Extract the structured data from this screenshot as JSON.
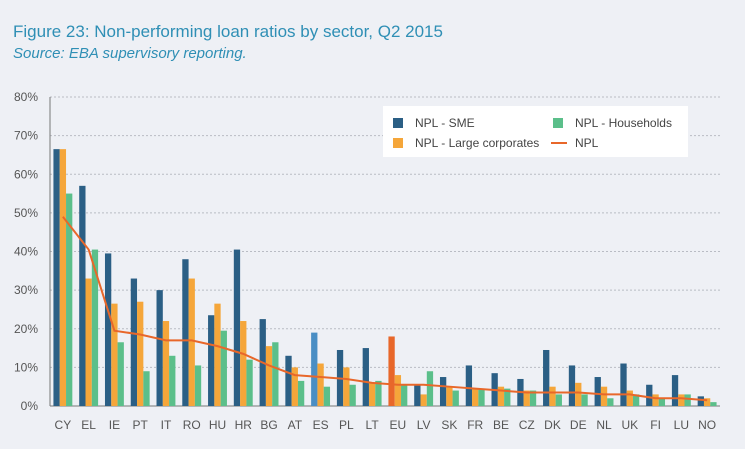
{
  "figure": {
    "label": "Figure 23:",
    "title": "Non-performing loan ratios by sector, Q2 2015",
    "source": "Source: EBA supervisory reporting."
  },
  "chart_data": {
    "type": "bar",
    "categories": [
      "CY",
      "EL",
      "IE",
      "PT",
      "IT",
      "RO",
      "HU",
      "HR",
      "BG",
      "AT",
      "ES",
      "PL",
      "LT",
      "EU",
      "LV",
      "SK",
      "FR",
      "BE",
      "CZ",
      "DK",
      "DE",
      "NL",
      "UK",
      "FI",
      "LU",
      "NO"
    ],
    "ylim": [
      0,
      80
    ],
    "yticks": [
      0,
      10,
      20,
      30,
      40,
      50,
      60,
      70,
      80
    ],
    "ytick_labels": [
      "0%",
      "10%",
      "20%",
      "30%",
      "40%",
      "50%",
      "60%",
      "70%",
      "80%"
    ],
    "grid": true,
    "legend_position": "top-right",
    "series": [
      {
        "name": "NPL - SME",
        "kind": "bar",
        "color": "#2b5f85",
        "values": [
          66.5,
          57,
          39.5,
          33,
          30,
          38,
          23.5,
          40.5,
          22.5,
          13,
          19,
          14.5,
          15,
          18,
          5.5,
          7.5,
          10.5,
          8.5,
          7,
          14.5,
          10.5,
          7.5,
          11,
          5.5,
          8,
          2.5
        ]
      },
      {
        "name": "NPL - Large corporates",
        "kind": "bar",
        "color": "#f5a63a",
        "values": [
          66.5,
          33,
          26.5,
          27,
          22,
          33,
          26.5,
          22,
          15.5,
          10,
          11,
          10,
          6,
          8,
          3,
          5,
          4.5,
          5,
          4,
          5,
          6,
          5,
          4,
          3,
          3,
          2
        ]
      },
      {
        "name": "NPL - Households",
        "kind": "bar",
        "color": "#5bbf8a",
        "values": [
          55,
          40.5,
          16.5,
          9,
          13,
          10.5,
          19.5,
          12,
          16.5,
          6.5,
          5,
          5.5,
          6.5,
          5.5,
          9,
          4,
          4.5,
          4.5,
          4,
          3,
          3,
          2,
          3,
          2,
          3,
          1
        ]
      },
      {
        "name": "NPL",
        "kind": "line",
        "color": "#e8672a",
        "values": [
          49,
          40.5,
          19.5,
          18.5,
          17,
          17,
          15.5,
          13.5,
          10.5,
          8,
          7.5,
          7,
          6,
          5.5,
          5.5,
          5,
          4.5,
          4,
          3.5,
          3.5,
          3.5,
          3,
          3,
          2,
          2,
          1.5
        ]
      }
    ],
    "highlight": {
      "ES": {
        "NPL - SME": "#4a8ec4"
      },
      "EU": {
        "NPL - SME": "#e8672a"
      }
    }
  }
}
